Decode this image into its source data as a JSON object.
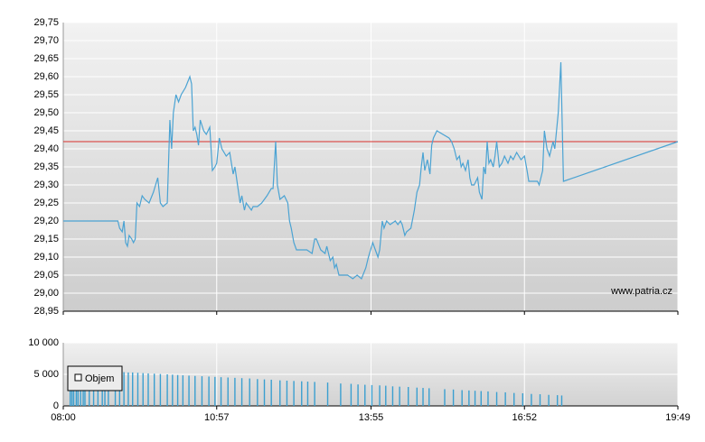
{
  "chart_data": [
    {
      "type": "line",
      "color": "#4ba3d3",
      "reference_line": 29.42,
      "reference_color": "#d9302c",
      "watermark": "www.patria.cz",
      "grid": true,
      "ylim": [
        28.95,
        29.75
      ],
      "yticks": [
        {
          "value": 28.95,
          "label": "28,95"
        },
        {
          "value": 29.0,
          "label": "29,00"
        },
        {
          "value": 29.05,
          "label": "29,05"
        },
        {
          "value": 29.1,
          "label": "29,10"
        },
        {
          "value": 29.15,
          "label": "29,15"
        },
        {
          "value": 29.2,
          "label": "29,20"
        },
        {
          "value": 29.25,
          "label": "29,25"
        },
        {
          "value": 29.3,
          "label": "29,30"
        },
        {
          "value": 29.35,
          "label": "29,35"
        },
        {
          "value": 29.4,
          "label": "29,40"
        },
        {
          "value": 29.45,
          "label": "29,45"
        },
        {
          "value": 29.5,
          "label": "29,50"
        },
        {
          "value": 29.55,
          "label": "29,55"
        },
        {
          "value": 29.6,
          "label": "29,60"
        },
        {
          "value": 29.65,
          "label": "29,65"
        },
        {
          "value": 29.7,
          "label": "29,70"
        },
        {
          "value": 29.75,
          "label": "29,75"
        }
      ],
      "x": [
        480,
        543,
        545,
        548,
        550,
        552,
        554,
        556,
        559,
        561,
        563,
        565,
        568,
        571,
        574,
        579,
        584,
        589,
        592,
        595,
        600,
        603,
        605,
        607,
        610,
        613,
        616,
        621,
        626,
        628,
        630,
        632,
        634,
        636,
        638,
        642,
        645,
        649,
        652,
        655,
        657,
        660,
        663,
        668,
        672,
        676,
        678,
        681,
        684,
        686,
        689,
        691,
        694,
        697,
        699,
        704,
        709,
        715,
        720,
        722,
        725,
        727,
        730,
        735,
        739,
        741,
        743,
        746,
        749,
        756,
        761,
        767,
        770,
        772,
        777,
        782,
        784,
        788,
        791,
        793,
        795,
        798,
        803,
        808,
        814,
        819,
        824,
        829,
        832,
        837,
        840,
        843,
        845,
        848,
        850,
        853,
        857,
        863,
        866,
        869,
        871,
        874,
        876,
        881,
        885,
        888,
        891,
        893,
        895,
        897,
        900,
        903,
        905,
        907,
        911,
        918,
        925,
        928,
        931,
        934,
        937,
        939,
        941,
        944,
        947,
        949,
        951,
        954,
        958,
        960,
        963,
        965,
        967,
        969,
        971,
        973,
        976,
        978,
        980,
        983,
        986,
        989,
        993,
        996,
        999,
        1003,
        1008,
        1012,
        1015,
        1017,
        1022,
        1027,
        1029,
        1033,
        1035,
        1038,
        1041,
        1045,
        1047,
        1049,
        1051,
        1054,
        1057,
        1189
      ],
      "values": [
        29.2,
        29.2,
        29.18,
        29.17,
        29.2,
        29.14,
        29.13,
        29.16,
        29.15,
        29.14,
        29.15,
        29.25,
        29.24,
        29.27,
        29.26,
        29.25,
        29.28,
        29.32,
        29.25,
        29.24,
        29.25,
        29.48,
        29.4,
        29.5,
        29.55,
        29.53,
        29.55,
        29.57,
        29.6,
        29.58,
        29.45,
        29.46,
        29.44,
        29.41,
        29.48,
        29.45,
        29.44,
        29.46,
        29.34,
        29.35,
        29.36,
        29.43,
        29.4,
        29.38,
        29.39,
        29.33,
        29.35,
        29.3,
        29.25,
        29.27,
        29.23,
        29.25,
        29.24,
        29.23,
        29.24,
        29.24,
        29.25,
        29.27,
        29.29,
        29.29,
        29.42,
        29.3,
        29.26,
        29.27,
        29.25,
        29.2,
        29.18,
        29.14,
        29.12,
        29.12,
        29.12,
        29.11,
        29.15,
        29.15,
        29.12,
        29.11,
        29.13,
        29.09,
        29.1,
        29.07,
        29.08,
        29.05,
        29.05,
        29.05,
        29.04,
        29.05,
        29.04,
        29.07,
        29.1,
        29.14,
        29.12,
        29.1,
        29.12,
        29.2,
        29.18,
        29.2,
        29.19,
        29.2,
        29.19,
        29.2,
        29.19,
        29.16,
        29.17,
        29.18,
        29.23,
        29.28,
        29.3,
        29.35,
        29.39,
        29.34,
        29.37,
        29.33,
        29.41,
        29.43,
        29.45,
        29.44,
        29.43,
        29.42,
        29.4,
        29.37,
        29.38,
        29.35,
        29.36,
        29.34,
        29.37,
        29.32,
        29.3,
        29.3,
        29.32,
        29.28,
        29.26,
        29.35,
        29.33,
        29.42,
        29.36,
        29.37,
        29.35,
        29.38,
        29.42,
        29.35,
        29.36,
        29.38,
        29.36,
        29.38,
        29.37,
        29.39,
        29.37,
        29.38,
        29.34,
        29.31,
        29.31,
        29.31,
        29.3,
        29.34,
        29.45,
        29.4,
        29.38,
        29.42,
        29.4,
        29.45,
        29.5,
        29.64,
        29.31,
        29.42
      ]
    },
    {
      "type": "bar",
      "grid": true,
      "xlim": [
        480,
        1189
      ],
      "xticks": [
        {
          "value": 480,
          "label": "08:00"
        },
        {
          "value": 657,
          "label": "10:57"
        },
        {
          "value": 835,
          "label": "13:55"
        },
        {
          "value": 1012,
          "label": "16:52"
        },
        {
          "value": 1189,
          "label": "19:49"
        }
      ],
      "ylim": [
        0,
        10000
      ],
      "yticks": [
        0,
        {
          "value": 5000,
          "label": "5 000"
        },
        {
          "value": 10000,
          "label": "10 000"
        }
      ],
      "series": [
        {
          "name": "Objem",
          "color": "#3a9fd0",
          "x": [
            488,
            490,
            492,
            495,
            497,
            500,
            503,
            505,
            510,
            515,
            520,
            525,
            528,
            532,
            540,
            545,
            550,
            555,
            560,
            566,
            572,
            578,
            585,
            592,
            600,
            606,
            612,
            618,
            625,
            632,
            640,
            648,
            655,
            662,
            670,
            678,
            686,
            695,
            704,
            712,
            720,
            730,
            738,
            746,
            755,
            762,
            770,
            785,
            800,
            812,
            820,
            828,
            836,
            845,
            852,
            860,
            868,
            878,
            888,
            895,
            902,
            920,
            930,
            940,
            948,
            955,
            962,
            970,
            980,
            990,
            1000,
            1010,
            1020,
            1030,
            1040,
            1050,
            1055
          ],
          "values": [
            5800,
            5800,
            5800,
            5750,
            5750,
            5700,
            5700,
            5700,
            5650,
            5600,
            5600,
            5550,
            5550,
            5500,
            5450,
            5400,
            5350,
            5300,
            5300,
            5250,
            5200,
            5150,
            5100,
            5050,
            5000,
            4950,
            4900,
            4850,
            4800,
            4750,
            4700,
            4650,
            4600,
            4550,
            4500,
            4450,
            4400,
            4350,
            4250,
            4200,
            4150,
            4050,
            4000,
            3950,
            3900,
            3850,
            3800,
            3700,
            3550,
            3500,
            3400,
            3350,
            3300,
            3250,
            3200,
            3100,
            3050,
            3000,
            2900,
            2850,
            2800,
            2650,
            2600,
            2500,
            2450,
            2400,
            2350,
            2300,
            2200,
            2150,
            2050,
            2000,
            1900,
            1850,
            1750,
            1700,
            1650
          ]
        }
      ]
    }
  ]
}
